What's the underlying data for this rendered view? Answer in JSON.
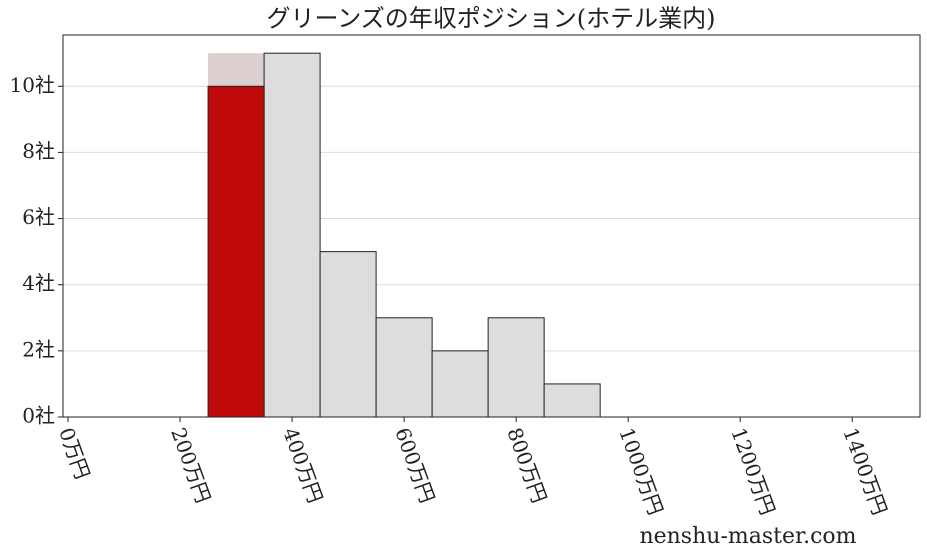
{
  "chart_data": {
    "type": "histogram",
    "title": "グリーンズの年収ポジション(ホテル業内)",
    "bins": [
      250,
      350,
      450,
      550,
      650,
      750,
      850,
      950
    ],
    "series": [
      {
        "colors": [
          "#dccfcf",
          "#dddddd",
          "#dddddd",
          "#dddddd",
          "#dddddd",
          "#dddddd",
          "#dddddd"
        ],
        "values": [
          11,
          11,
          5,
          3,
          2,
          3,
          1
        ]
      },
      {
        "color": "#c00a0a",
        "values": [
          10,
          null,
          null,
          null,
          null,
          null,
          null
        ]
      }
    ],
    "xlim": [
      -9,
      1521
    ],
    "xticks": [
      {
        "value": 0,
        "label": "0万円"
      },
      {
        "value": 200,
        "label": "200万円"
      },
      {
        "value": 400,
        "label": "400万円"
      },
      {
        "value": 600,
        "label": "600万円"
      },
      {
        "value": 800,
        "label": "800万円"
      },
      {
        "value": 1000,
        "label": "1000万円"
      },
      {
        "value": 1200,
        "label": "1200万円"
      },
      {
        "value": 1400,
        "label": "1400万円"
      }
    ],
    "ylim": [
      0,
      11.55
    ],
    "yticks": [
      {
        "value": 0,
        "label": "0社"
      },
      {
        "value": 2,
        "label": "2社"
      },
      {
        "value": 4,
        "label": "4社"
      },
      {
        "value": 6,
        "label": "6社"
      },
      {
        "value": 8,
        "label": "8社"
      },
      {
        "value": 10,
        "label": "10社"
      }
    ],
    "grid": true,
    "watermark": "nenshu-master.com"
  }
}
